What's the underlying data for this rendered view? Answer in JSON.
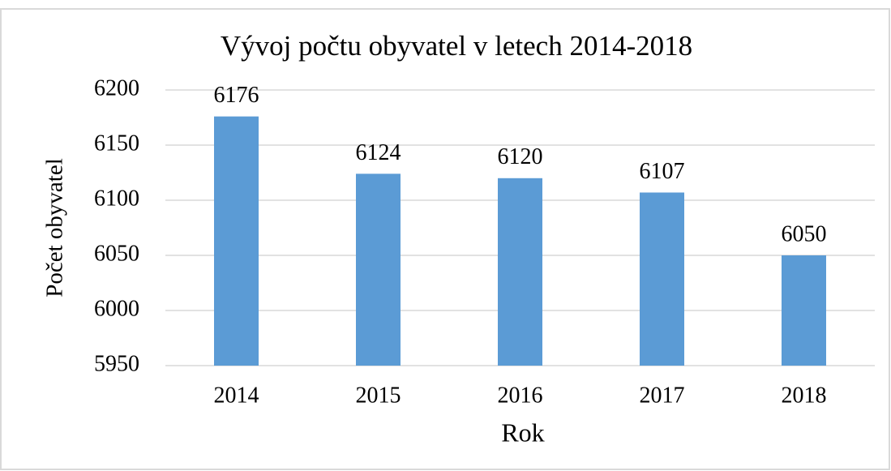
{
  "chart_data": {
    "type": "bar",
    "title": "Vývoj počtu obyvatel v letech 2014-2018",
    "x_label": "Rok",
    "y_label": "Počet obyvatel",
    "categories": [
      "2014",
      "2015",
      "2016",
      "2017",
      "2018"
    ],
    "values": [
      6176,
      6124,
      6120,
      6107,
      6050
    ],
    "color": "#5b9bd5",
    "ylim": [
      5950,
      6200
    ],
    "yticks": [
      5950,
      6000,
      6050,
      6100,
      6150,
      6200
    ],
    "grid": true
  }
}
